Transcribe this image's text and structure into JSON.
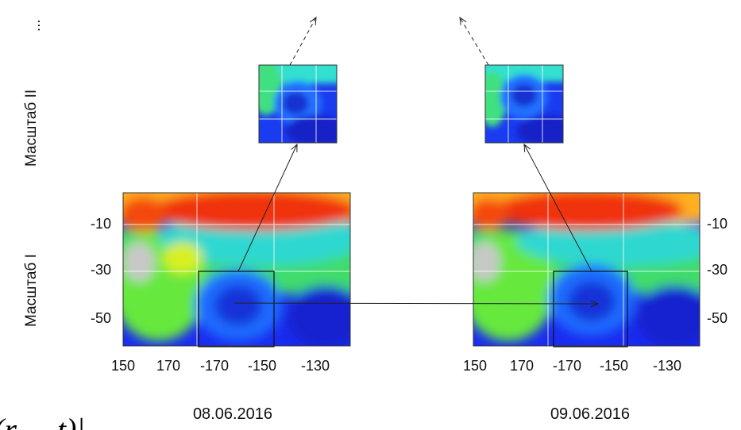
{
  "side_labels": {
    "ellipsis": "...",
    "scale_2": "Масштаб II",
    "scale_1": "Масштаб I"
  },
  "left_panel": {
    "yticks": [
      "-10",
      "-30",
      "-50"
    ],
    "xticks": [
      "150",
      "170",
      "-170",
      "-150",
      "-130"
    ],
    "date": "08.06.2016"
  },
  "right_panel": {
    "yticks": [
      "-10",
      "-30",
      "-50"
    ],
    "xticks": [
      "150",
      "170",
      "-170",
      "-150",
      "-130"
    ],
    "date": "09.06.2016"
  },
  "formula": "(r⃗, t)|"
}
